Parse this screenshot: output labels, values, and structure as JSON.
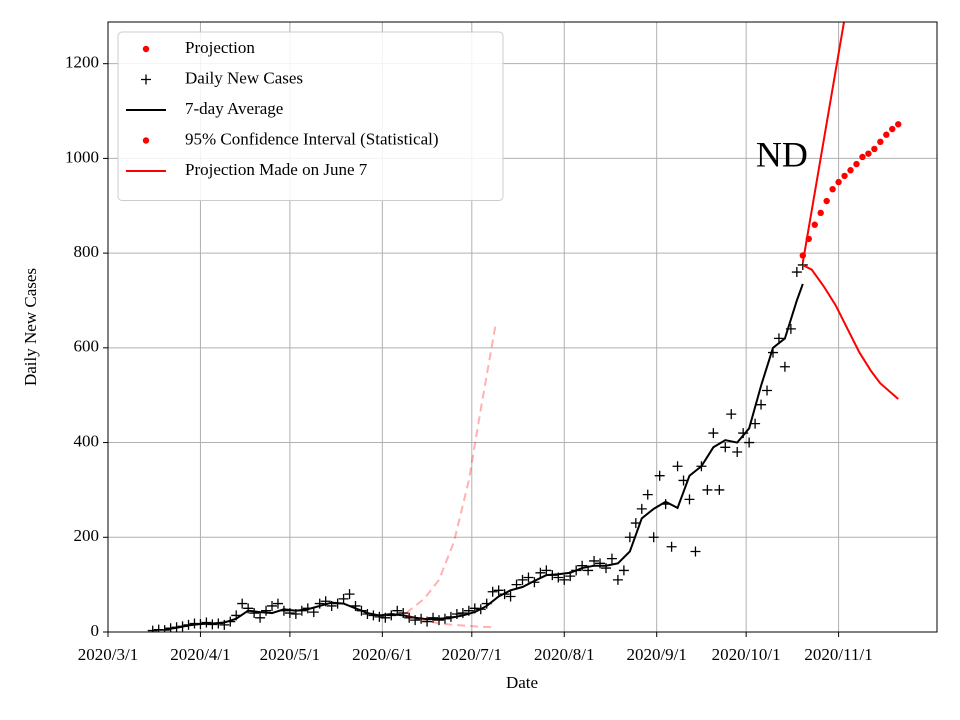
{
  "chart_data": {
    "type": "line",
    "xlabel": "Date",
    "ylabel": "Daily New Cases",
    "xlim": [
      "2020-03-01",
      "2020-12-04"
    ],
    "ylim": [
      0,
      1288
    ],
    "xticks": [
      {
        "value": "2020-03-01",
        "label": "2020/3/1"
      },
      {
        "value": "2020-04-01",
        "label": "2020/4/1"
      },
      {
        "value": "2020-05-01",
        "label": "2020/5/1"
      },
      {
        "value": "2020-06-01",
        "label": "2020/6/1"
      },
      {
        "value": "2020-07-01",
        "label": "2020/7/1"
      },
      {
        "value": "2020-08-01",
        "label": "2020/8/1"
      },
      {
        "value": "2020-09-01",
        "label": "2020/9/1"
      },
      {
        "value": "2020-10-01",
        "label": "2020/10/1"
      },
      {
        "value": "2020-11-01",
        "label": "2020/11/1"
      }
    ],
    "yticks": [
      0,
      200,
      400,
      600,
      800,
      1000,
      1200
    ],
    "grid": true,
    "legend": "upper left",
    "annotations": [
      {
        "text": "ND",
        "x": "2020-10-13",
        "y": 1000
      }
    ],
    "series": [
      {
        "name": "Projection",
        "color": "#ff0000",
        "marker": "dot",
        "x": [
          "2020-10-20",
          "2020-10-22",
          "2020-10-24",
          "2020-10-26",
          "2020-10-28",
          "2020-10-30",
          "2020-11-01",
          "2020-11-03",
          "2020-11-05",
          "2020-11-07",
          "2020-11-09",
          "2020-11-11",
          "2020-11-13",
          "2020-11-15",
          "2020-11-17",
          "2020-11-19",
          "2020-11-21"
        ],
        "values": [
          795,
          830,
          860,
          885,
          910,
          935,
          950,
          963,
          975,
          988,
          1003,
          1010,
          1020,
          1035,
          1050,
          1062,
          1072
        ]
      },
      {
        "name": "Daily New Cases",
        "color": "#000000",
        "marker": "plus",
        "x": [
          "2020-03-16",
          "2020-03-18",
          "2020-03-20",
          "2020-03-22",
          "2020-03-24",
          "2020-03-26",
          "2020-03-28",
          "2020-03-30",
          "2020-04-01",
          "2020-04-03",
          "2020-04-05",
          "2020-04-07",
          "2020-04-09",
          "2020-04-11",
          "2020-04-13",
          "2020-04-15",
          "2020-04-17",
          "2020-04-19",
          "2020-04-21",
          "2020-04-23",
          "2020-04-25",
          "2020-04-27",
          "2020-04-29",
          "2020-05-01",
          "2020-05-03",
          "2020-05-05",
          "2020-05-07",
          "2020-05-09",
          "2020-05-11",
          "2020-05-13",
          "2020-05-15",
          "2020-05-17",
          "2020-05-19",
          "2020-05-21",
          "2020-05-23",
          "2020-05-25",
          "2020-05-27",
          "2020-05-29",
          "2020-05-31",
          "2020-06-02",
          "2020-06-04",
          "2020-06-06",
          "2020-06-08",
          "2020-06-10",
          "2020-06-12",
          "2020-06-14",
          "2020-06-16",
          "2020-06-18",
          "2020-06-20",
          "2020-06-22",
          "2020-06-24",
          "2020-06-26",
          "2020-06-28",
          "2020-06-30",
          "2020-07-02",
          "2020-07-04",
          "2020-07-06",
          "2020-07-08",
          "2020-07-10",
          "2020-07-12",
          "2020-07-14",
          "2020-07-16",
          "2020-07-18",
          "2020-07-20",
          "2020-07-22",
          "2020-07-24",
          "2020-07-26",
          "2020-07-28",
          "2020-07-30",
          "2020-08-01",
          "2020-08-03",
          "2020-08-05",
          "2020-08-07",
          "2020-08-09",
          "2020-08-11",
          "2020-08-13",
          "2020-08-15",
          "2020-08-17",
          "2020-08-19",
          "2020-08-21",
          "2020-08-23",
          "2020-08-25",
          "2020-08-27",
          "2020-08-29",
          "2020-08-31",
          "2020-09-02",
          "2020-09-04",
          "2020-09-06",
          "2020-09-08",
          "2020-09-10",
          "2020-09-12",
          "2020-09-14",
          "2020-09-16",
          "2020-09-18",
          "2020-09-20",
          "2020-09-22",
          "2020-09-24",
          "2020-09-26",
          "2020-09-28",
          "2020-09-30",
          "2020-10-02",
          "2020-10-04",
          "2020-10-06",
          "2020-10-08",
          "2020-10-10",
          "2020-10-12",
          "2020-10-14",
          "2020-10-16",
          "2020-10-18",
          "2020-10-20"
        ],
        "values": [
          3,
          5,
          4,
          8,
          10,
          12,
          15,
          18,
          17,
          20,
          16,
          18,
          15,
          22,
          35,
          60,
          50,
          40,
          30,
          45,
          55,
          60,
          45,
          40,
          38,
          45,
          50,
          42,
          60,
          65,
          55,
          60,
          70,
          80,
          55,
          45,
          38,
          35,
          32,
          30,
          35,
          45,
          40,
          30,
          25,
          28,
          22,
          30,
          25,
          28,
          32,
          38,
          40,
          45,
          50,
          48,
          60,
          85,
          88,
          80,
          75,
          100,
          110,
          115,
          105,
          125,
          130,
          120,
          115,
          110,
          118,
          130,
          140,
          130,
          150,
          145,
          135,
          155,
          110,
          130,
          200,
          230,
          260,
          290,
          200,
          330,
          270,
          180,
          350,
          320,
          280,
          170,
          350,
          300,
          420,
          300,
          390,
          460,
          380,
          420,
          400,
          440,
          480,
          510,
          590,
          620,
          560,
          640,
          760,
          775
        ]
      },
      {
        "name": "7-day Average",
        "color": "#000000",
        "marker": "line",
        "x": [
          "2020-03-20",
          "2020-03-24",
          "2020-03-28",
          "2020-04-01",
          "2020-04-05",
          "2020-04-09",
          "2020-04-13",
          "2020-04-17",
          "2020-04-21",
          "2020-04-25",
          "2020-04-29",
          "2020-05-03",
          "2020-05-07",
          "2020-05-11",
          "2020-05-15",
          "2020-05-19",
          "2020-05-23",
          "2020-05-27",
          "2020-05-31",
          "2020-06-04",
          "2020-06-08",
          "2020-06-12",
          "2020-06-16",
          "2020-06-20",
          "2020-06-24",
          "2020-06-28",
          "2020-07-02",
          "2020-07-06",
          "2020-07-10",
          "2020-07-14",
          "2020-07-18",
          "2020-07-22",
          "2020-07-26",
          "2020-07-30",
          "2020-08-03",
          "2020-08-07",
          "2020-08-11",
          "2020-08-15",
          "2020-08-19",
          "2020-08-23",
          "2020-08-27",
          "2020-08-31",
          "2020-09-04",
          "2020-09-08",
          "2020-09-12",
          "2020-09-16",
          "2020-09-20",
          "2020-09-24",
          "2020-09-28",
          "2020-10-02",
          "2020-10-06",
          "2020-10-10",
          "2020-10-14",
          "2020-10-18",
          "2020-10-20"
        ],
        "values": [
          5,
          9,
          14,
          17,
          18,
          20,
          28,
          45,
          42,
          40,
          48,
          45,
          48,
          55,
          62,
          60,
          50,
          40,
          35,
          38,
          35,
          30,
          27,
          28,
          30,
          35,
          42,
          55,
          75,
          88,
          95,
          108,
          120,
          122,
          125,
          135,
          140,
          140,
          145,
          170,
          240,
          260,
          275,
          262,
          330,
          350,
          390,
          405,
          400,
          430,
          520,
          600,
          620,
          700,
          735
        ]
      },
      {
        "name": "95% Confidence Interval (Statistical)",
        "color": "#ff0000",
        "marker": "line",
        "legend_marker": "dot",
        "lines": [
          {
            "x": [
              "2020-10-20",
              "2020-11-03"
            ],
            "values": [
              780,
              1295
            ]
          },
          {
            "x": [
              "2020-10-20",
              "2020-10-23",
              "2020-10-27",
              "2020-10-31",
              "2020-11-04",
              "2020-11-08",
              "2020-11-12",
              "2020-11-15",
              "2020-11-21"
            ],
            "values": [
              775,
              765,
              730,
              690,
              640,
              590,
              550,
              525,
              492
            ]
          }
        ]
      },
      {
        "name": "Projection Made on June 7",
        "color": "#ff0000",
        "marker": "line",
        "dash": true,
        "alpha": 0.3,
        "lines": [
          {
            "x": [
              "2020-06-09",
              "2020-06-15",
              "2020-06-20",
              "2020-06-25",
              "2020-06-30",
              "2020-07-04",
              "2020-07-09"
            ],
            "values": [
              40,
              70,
              110,
              190,
              320,
              470,
              650
            ]
          },
          {
            "x": [
              "2020-06-09",
              "2020-06-15",
              "2020-06-20",
              "2020-06-25",
              "2020-06-30",
              "2020-07-04",
              "2020-07-09"
            ],
            "values": [
              35,
              25,
              18,
              15,
              13,
              11,
              10
            ]
          }
        ]
      }
    ]
  }
}
